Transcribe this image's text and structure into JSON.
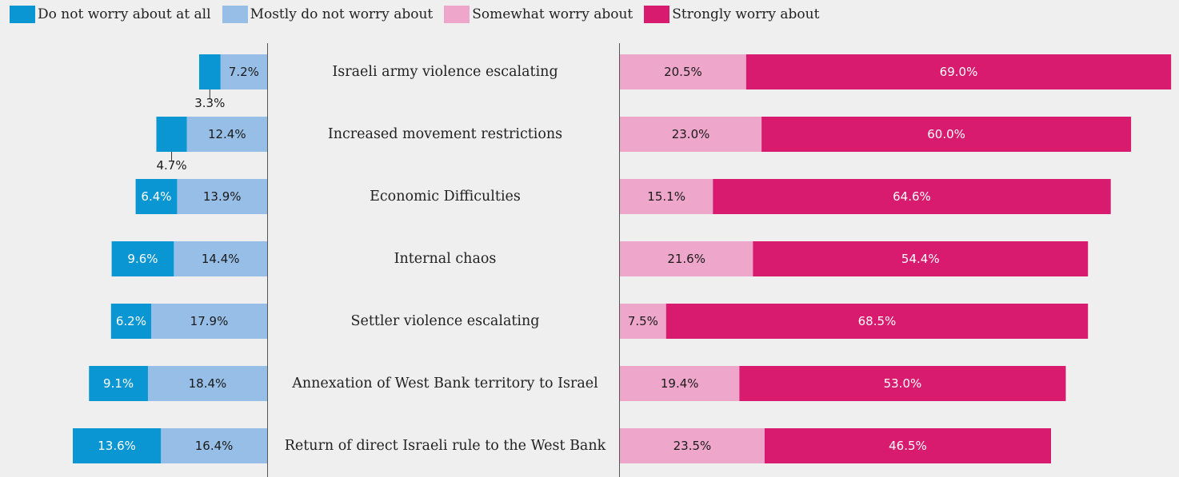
{
  "chart_data": {
    "type": "bar",
    "legend": [
      {
        "name": "Do not worry about at all",
        "color": "#0a96d2"
      },
      {
        "name": "Mostly do not worry about",
        "color": "#96bee6"
      },
      {
        "name": "Somewhat worry about",
        "color": "#eea7cb"
      },
      {
        "name": "Strongly worry about",
        "color": "#d81b6e"
      }
    ],
    "categories": [
      "Israeli army violence escalating",
      "Increased movement restrictions",
      "Economic Difficulties",
      "Internal chaos",
      "Settler violence escalating",
      "Annexation of West Bank territory to Israel",
      "Return of direct Israeli rule to the West Bank"
    ],
    "series": [
      {
        "name": "Do not worry about at all",
        "values": [
          3.3,
          4.7,
          6.4,
          9.6,
          6.2,
          9.1,
          13.6
        ]
      },
      {
        "name": "Mostly do not worry about",
        "values": [
          7.2,
          12.4,
          13.9,
          14.4,
          17.9,
          18.4,
          16.4
        ]
      },
      {
        "name": "Somewhat worry about",
        "values": [
          20.5,
          23.0,
          15.1,
          21.6,
          7.5,
          19.4,
          23.5
        ]
      },
      {
        "name": "Strongly worry about",
        "values": [
          69.0,
          60.0,
          64.6,
          54.4,
          68.5,
          53.0,
          46.5
        ]
      }
    ],
    "labels": {
      "do_not_worry": [
        "3.3%",
        "4.7%",
        "6.4%",
        "9.6%",
        "6.2%",
        "9.1%",
        "13.6%"
      ],
      "mostly_not": [
        "7.2%",
        "12.4%",
        "13.9%",
        "14.4%",
        "17.9%",
        "18.4%",
        "16.4%"
      ],
      "somewhat": [
        "20.5%",
        "23.0%",
        "15.1%",
        "21.6%",
        "7.5%",
        "19.4%",
        "23.5%"
      ],
      "strongly": [
        "69.0%",
        "60.0%",
        "64.6%",
        "54.4%",
        "68.5%",
        "53.0%",
        "46.5%"
      ]
    }
  }
}
